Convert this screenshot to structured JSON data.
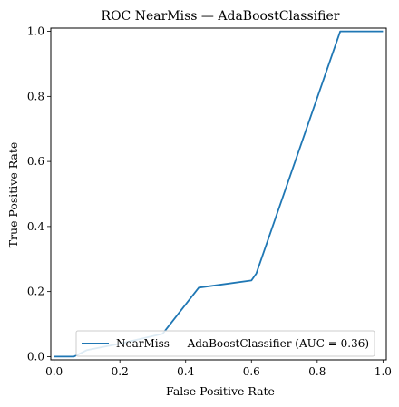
{
  "chart_data": {
    "type": "line",
    "title": "ROC NearMiss — AdaBoostClassifier",
    "xlabel": "False Positive Rate",
    "ylabel": "True Positive Rate",
    "xlim": [
      -0.01,
      1.01
    ],
    "ylim": [
      -0.01,
      1.01
    ],
    "xticks": [
      0.0,
      0.2,
      0.4,
      0.6,
      0.8,
      1.0
    ],
    "yticks": [
      0.0,
      0.2,
      0.4,
      0.6,
      0.8,
      1.0
    ],
    "xtick_labels": [
      "0.0",
      "0.2",
      "0.4",
      "0.6",
      "0.8",
      "1.0"
    ],
    "ytick_labels": [
      "0.0",
      "0.2",
      "0.4",
      "0.6",
      "0.8",
      "1.0"
    ],
    "grid": false,
    "legend_position": "lower-right",
    "series": [
      {
        "name": "NearMiss — AdaBoostClassifier (AUC = 0.36)",
        "color": "#1f77b4",
        "x": [
          0.0,
          0.06,
          0.1,
          0.2,
          0.33,
          0.44,
          0.6,
          0.615,
          0.87,
          1.0
        ],
        "y": [
          0.0,
          0.0,
          0.02,
          0.04,
          0.07,
          0.212,
          0.234,
          0.256,
          1.0,
          1.0
        ]
      }
    ]
  }
}
